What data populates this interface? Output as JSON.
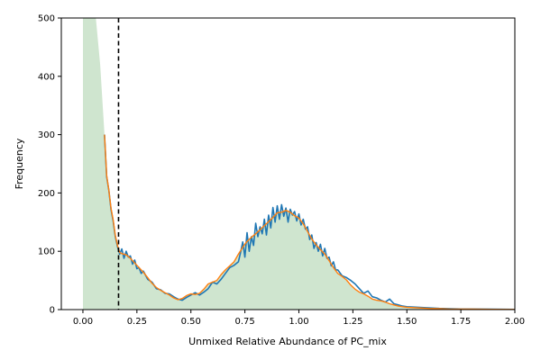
{
  "chart_data": {
    "type": "area",
    "title": "",
    "xlabel": "Unmixed Relative Abundance of PC_mix",
    "ylabel": "Frequency",
    "xlim": [
      -0.1,
      2.0
    ],
    "ylim": [
      0,
      500
    ],
    "xticks": [
      0.0,
      0.25,
      0.5,
      0.75,
      1.0,
      1.25,
      1.5,
      1.75,
      2.0
    ],
    "xtick_labels": [
      "0.00",
      "0.25",
      "0.50",
      "0.75",
      "1.00",
      "1.25",
      "1.50",
      "1.75",
      "2.00"
    ],
    "yticks": [
      0,
      100,
      200,
      300,
      400,
      500
    ],
    "ytick_labels": [
      "0",
      "100",
      "200",
      "300",
      "400",
      "500"
    ],
    "grid": false,
    "legend": "none",
    "vline": {
      "x": 0.165,
      "style": "dashed",
      "color": "#000000"
    },
    "series": [
      {
        "kind": "filled-area",
        "color": "#cfe5cf",
        "x": [
          0.0,
          0.0,
          0.02,
          0.04,
          0.06,
          0.08,
          0.1,
          0.11,
          0.12,
          0.13,
          0.14,
          0.15,
          0.16,
          0.17,
          0.18,
          0.2,
          0.22,
          0.24,
          0.26,
          0.28,
          0.3,
          0.32,
          0.34,
          0.36,
          0.38,
          0.4,
          0.42,
          0.44,
          0.46,
          0.48,
          0.5,
          0.52,
          0.54,
          0.56,
          0.58,
          0.6,
          0.62,
          0.64,
          0.66,
          0.68,
          0.7,
          0.72,
          0.74,
          0.76,
          0.78,
          0.8,
          0.82,
          0.84,
          0.86,
          0.88,
          0.9,
          0.92,
          0.94,
          0.96,
          0.98,
          1.0,
          1.02,
          1.04,
          1.06,
          1.08,
          1.1,
          1.12,
          1.14,
          1.16,
          1.18,
          1.2,
          1.22,
          1.24,
          1.26,
          1.28,
          1.3,
          1.32,
          1.34,
          1.36,
          1.38,
          1.4,
          1.42,
          1.44,
          1.46,
          1.48,
          1.5,
          1.55,
          1.6,
          1.65,
          1.7,
          1.75,
          1.8,
          1.9,
          2.0,
          2.0
        ],
        "values": [
          0,
          500,
          500,
          500,
          500,
          420,
          300,
          230,
          205,
          175,
          155,
          128,
          110,
          98,
          96,
          95,
          88,
          80,
          72,
          65,
          55,
          45,
          38,
          33,
          30,
          25,
          20,
          17,
          20,
          25,
          28,
          26,
          28,
          35,
          45,
          48,
          50,
          60,
          68,
          75,
          82,
          95,
          108,
          118,
          125,
          130,
          138,
          145,
          152,
          160,
          168,
          168,
          172,
          168,
          162,
          158,
          148,
          135,
          122,
          112,
          104,
          96,
          85,
          72,
          62,
          58,
          52,
          42,
          35,
          30,
          28,
          24,
          18,
          16,
          15,
          14,
          10,
          8,
          6,
          5,
          4,
          3,
          2,
          1.5,
          1,
          1,
          0.8,
          0.5,
          0.3,
          0
        ]
      },
      {
        "kind": "line",
        "color": "#1f77b4",
        "x": [
          0.1,
          0.11,
          0.12,
          0.13,
          0.14,
          0.15,
          0.16,
          0.17,
          0.18,
          0.19,
          0.2,
          0.21,
          0.22,
          0.23,
          0.24,
          0.25,
          0.26,
          0.27,
          0.28,
          0.3,
          0.32,
          0.34,
          0.36,
          0.38,
          0.4,
          0.42,
          0.44,
          0.46,
          0.48,
          0.5,
          0.52,
          0.54,
          0.56,
          0.58,
          0.6,
          0.62,
          0.64,
          0.66,
          0.68,
          0.7,
          0.72,
          0.73,
          0.74,
          0.75,
          0.76,
          0.77,
          0.78,
          0.79,
          0.8,
          0.81,
          0.82,
          0.83,
          0.84,
          0.85,
          0.86,
          0.87,
          0.88,
          0.89,
          0.9,
          0.91,
          0.92,
          0.93,
          0.94,
          0.95,
          0.96,
          0.97,
          0.98,
          0.99,
          1.0,
          1.01,
          1.02,
          1.03,
          1.04,
          1.05,
          1.06,
          1.07,
          1.08,
          1.09,
          1.1,
          1.11,
          1.12,
          1.13,
          1.14,
          1.15,
          1.16,
          1.17,
          1.18,
          1.2,
          1.22,
          1.24,
          1.26,
          1.28,
          1.3,
          1.32,
          1.34,
          1.36,
          1.38,
          1.4,
          1.42,
          1.44,
          1.46,
          1.48,
          1.5,
          1.55,
          1.6,
          1.65,
          1.7,
          1.75,
          1.8,
          1.9,
          2.0
        ],
        "values": [
          300,
          228,
          205,
          172,
          152,
          125,
          108,
          95,
          104,
          88,
          100,
          90,
          92,
          78,
          85,
          70,
          72,
          62,
          66,
          52,
          47,
          36,
          34,
          28,
          27,
          22,
          18,
          16,
          21,
          25,
          29,
          25,
          30,
          36,
          47,
          44,
          52,
          62,
          72,
          76,
          82,
          98,
          116,
          90,
          132,
          100,
          125,
          110,
          148,
          125,
          142,
          130,
          155,
          128,
          162,
          140,
          175,
          150,
          178,
          155,
          180,
          160,
          174,
          150,
          172,
          162,
          168,
          152,
          164,
          145,
          155,
          138,
          142,
          120,
          128,
          105,
          115,
          100,
          112,
          92,
          105,
          88,
          90,
          75,
          82,
          68,
          68,
          58,
          55,
          50,
          44,
          36,
          28,
          32,
          22,
          20,
          16,
          13,
          18,
          10,
          8,
          6,
          5,
          4,
          3,
          2,
          1.5,
          1,
          1,
          0.6,
          0.3
        ]
      },
      {
        "kind": "line",
        "color": "#ff7f0e",
        "x": [
          0.1,
          0.11,
          0.12,
          0.13,
          0.14,
          0.15,
          0.16,
          0.17,
          0.18,
          0.2,
          0.22,
          0.24,
          0.26,
          0.28,
          0.3,
          0.32,
          0.34,
          0.36,
          0.38,
          0.4,
          0.42,
          0.44,
          0.46,
          0.48,
          0.5,
          0.52,
          0.54,
          0.56,
          0.58,
          0.6,
          0.62,
          0.64,
          0.66,
          0.68,
          0.7,
          0.72,
          0.74,
          0.76,
          0.78,
          0.8,
          0.82,
          0.84,
          0.86,
          0.88,
          0.9,
          0.92,
          0.94,
          0.96,
          0.98,
          1.0,
          1.02,
          1.04,
          1.06,
          1.08,
          1.1,
          1.12,
          1.14,
          1.16,
          1.18,
          1.2,
          1.22,
          1.24,
          1.26,
          1.28,
          1.3,
          1.32,
          1.34,
          1.36,
          1.38,
          1.4,
          1.42,
          1.44,
          1.46,
          1.48,
          1.5,
          1.55,
          1.6,
          1.65,
          1.7,
          1.75,
          1.8,
          1.9,
          2.0
        ],
        "values": [
          300,
          230,
          205,
          174,
          154,
          127,
          110,
          98,
          96,
          94,
          88,
          80,
          72,
          64,
          55,
          45,
          38,
          33,
          29,
          25,
          20,
          17,
          19,
          24,
          27,
          26,
          28,
          35,
          44,
          47,
          50,
          60,
          68,
          75,
          82,
          95,
          107,
          117,
          124,
          130,
          137,
          144,
          151,
          158,
          166,
          167,
          170,
          167,
          161,
          157,
          147,
          134,
          121,
          111,
          103,
          95,
          84,
          72,
          62,
          57,
          51,
          42,
          35,
          30,
          27,
          23,
          18,
          16,
          15,
          13,
          10,
          8,
          6,
          5,
          4,
          3,
          2,
          1.5,
          1,
          1,
          0.8,
          0.5,
          0.3
        ]
      }
    ]
  }
}
